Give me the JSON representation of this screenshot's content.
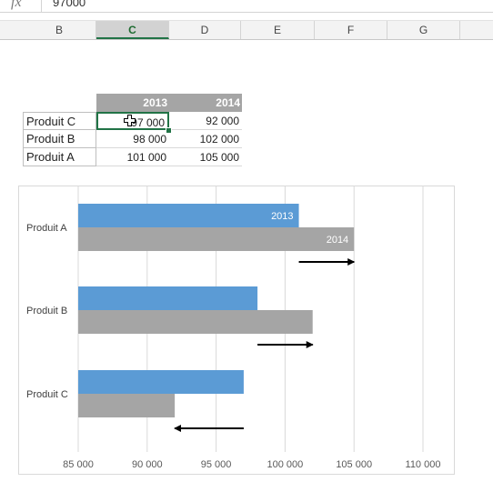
{
  "formula_bar": {
    "fx_label": "fx",
    "value": "97000"
  },
  "columns": [
    "B",
    "C",
    "D",
    "E",
    "F",
    "G"
  ],
  "table": {
    "headers": [
      "2013",
      "2014"
    ],
    "rows": [
      {
        "label": "Produit C",
        "v2013": "97 000",
        "v2014": "92 000"
      },
      {
        "label": "Produit B",
        "v2013": "98 000",
        "v2014": "102 000"
      },
      {
        "label": "Produit A",
        "v2013": "101 000",
        "v2014": "105 000"
      }
    ]
  },
  "colors": {
    "series_2013": "#5b9bd5",
    "series_2014": "#a5a5a5",
    "selection": "#217346"
  },
  "chart_data": {
    "type": "bar",
    "orientation": "horizontal",
    "categories": [
      "Produit A",
      "Produit B",
      "Produit C"
    ],
    "series": [
      {
        "name": "2013",
        "values": [
          101000,
          98000,
          97000
        ]
      },
      {
        "name": "2014",
        "values": [
          105000,
          102000,
          92000
        ]
      }
    ],
    "data_labels": {
      "Produit A": [
        "2013",
        "2014"
      ]
    },
    "xlim": [
      85000,
      110000
    ],
    "x_ticks": [
      85000,
      90000,
      95000,
      100000,
      105000,
      110000
    ],
    "x_tick_labels": [
      "85 000",
      "90 000",
      "95 000",
      "100 000",
      "105 000",
      "110 000"
    ],
    "gridlines": true,
    "arrows": [
      {
        "category": "Produit A",
        "from": 101000,
        "to": 105000
      },
      {
        "category": "Produit B",
        "from": 98000,
        "to": 102000
      },
      {
        "category": "Produit C",
        "from": 97000,
        "to": 92000
      }
    ]
  }
}
